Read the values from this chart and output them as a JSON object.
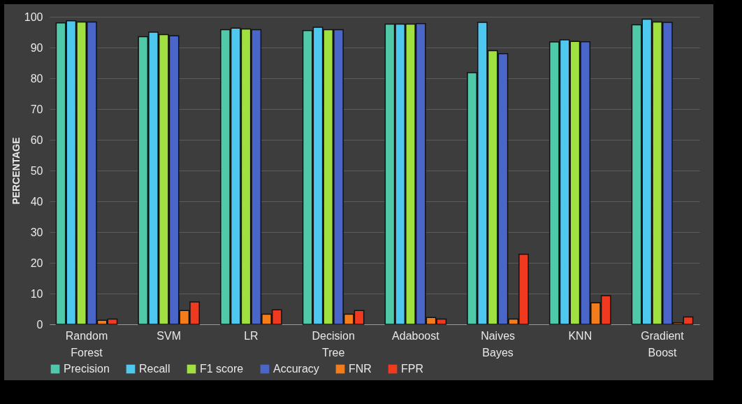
{
  "chart_data": {
    "type": "bar",
    "ylabel": "PERCENTAGE",
    "categories": [
      "Random Forest",
      "SVM",
      "LR",
      "Decision Tree",
      "Adaboost",
      "Naives Bayes",
      "KNN",
      "Gradient Boost"
    ],
    "series": [
      {
        "name": "Precision",
        "color": "#4fc9a8",
        "values": [
          98,
          93.5,
          95.8,
          95.5,
          97.6,
          81.8,
          91.8,
          97.4
        ]
      },
      {
        "name": "Recall",
        "color": "#4fc8f0",
        "values": [
          98.7,
          95,
          96.3,
          96.6,
          97.6,
          98.2,
          92.5,
          99.2
        ]
      },
      {
        "name": "F1 score",
        "color": "#a0e040",
        "values": [
          98.3,
          94.2,
          96,
          95.8,
          97.6,
          89,
          92,
          98.3
        ]
      },
      {
        "name": "Accuracy",
        "color": "#4a66c8",
        "values": [
          98.3,
          93.8,
          95.8,
          95.8,
          97.8,
          88,
          91.9,
          98.2
        ]
      },
      {
        "name": "FNR",
        "color": "#f57c1a",
        "values": [
          1.3,
          4.5,
          3.3,
          3.3,
          2.2,
          1.7,
          7,
          0.5
        ]
      },
      {
        "name": "FPR",
        "color": "#f03a20",
        "values": [
          1.7,
          7.3,
          4.7,
          4.5,
          1.7,
          22.8,
          9.3,
          2.4
        ]
      }
    ],
    "ylim": [
      0,
      100
    ],
    "yticks": [
      0,
      10,
      20,
      30,
      40,
      50,
      60,
      70,
      80,
      90,
      100
    ],
    "grid": "y",
    "legend": "bottom"
  }
}
